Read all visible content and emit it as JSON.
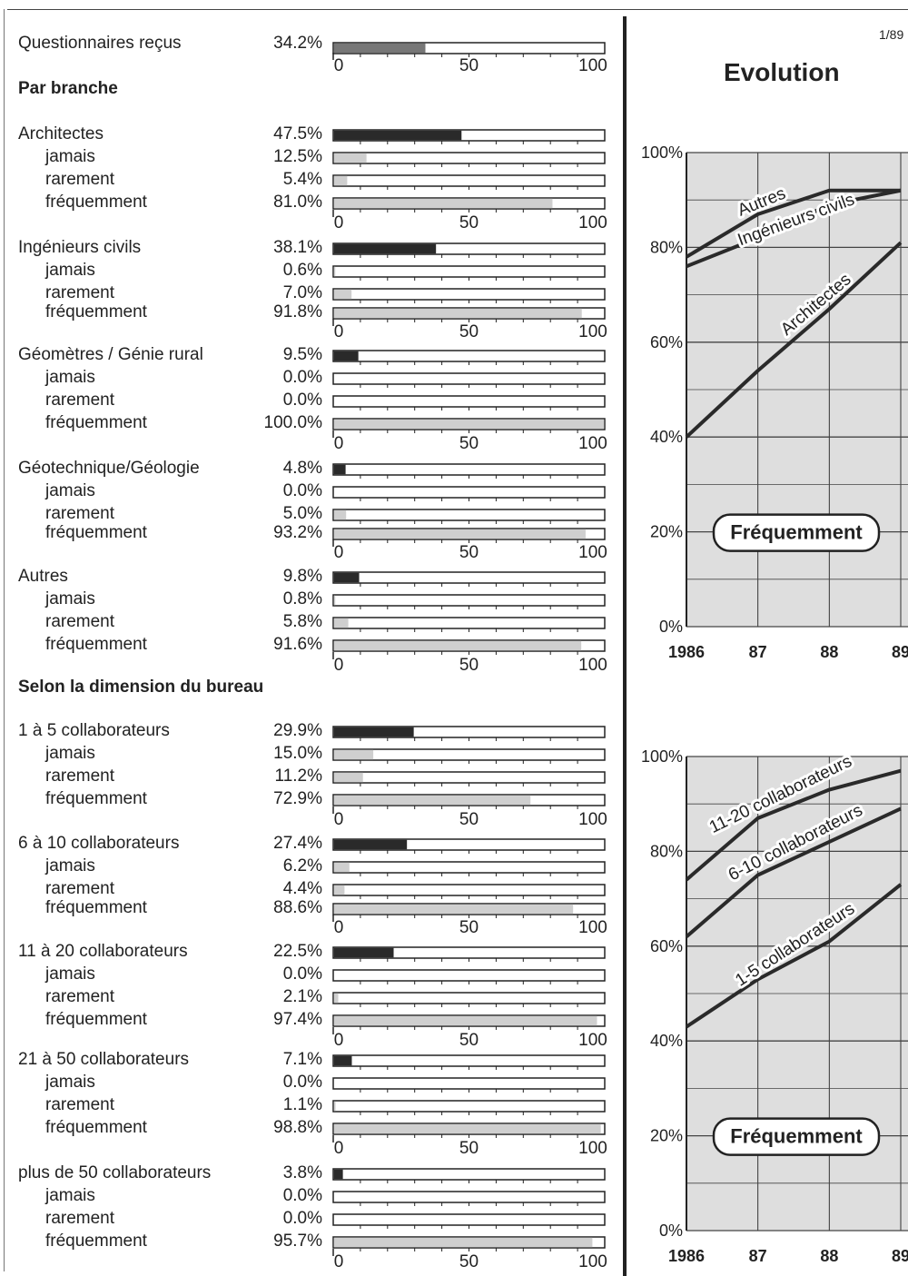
{
  "page_number": "1/89",
  "evolution_title": "Evolution",
  "questionnaires": {
    "label": "Questionnaires reçus",
    "value": 34.2,
    "display": "34.2%"
  },
  "sections": {
    "branche": "Par branche",
    "dimension": "Selon la dimension du bureau"
  },
  "scale_labels": [
    "0",
    "50",
    "100"
  ],
  "colors": {
    "total_bar": "#2a2a2a",
    "sub_bar": "#cfcfcf",
    "chart_bg": "#dedede",
    "line": "#2a2a2a"
  },
  "groups": [
    {
      "label": "Architectes",
      "total": 47.5,
      "total_display": "47.5%",
      "rows": [
        {
          "label": "jamais",
          "value": 12.5,
          "display": "12.5%"
        },
        {
          "label": "rarement",
          "value": 5.4,
          "display": "5.4%"
        },
        {
          "label": "fréquemment",
          "value": 81.0,
          "display": "81.0%"
        }
      ]
    },
    {
      "label": "Ingénieurs civils",
      "total": 38.1,
      "total_display": "38.1%",
      "rows": [
        {
          "label": "jamais",
          "value": 0.6,
          "display": "0.6%"
        },
        {
          "label": "rarement",
          "value": 7.0,
          "display": "7.0%"
        },
        {
          "label": "fréquemment",
          "value": 91.8,
          "display": "91.8%"
        }
      ]
    },
    {
      "label": "Géomètres / Génie rural",
      "total": 9.5,
      "total_display": "9.5%",
      "rows": [
        {
          "label": "jamais",
          "value": 0.0,
          "display": "0.0%"
        },
        {
          "label": "rarement",
          "value": 0.0,
          "display": "0.0%"
        },
        {
          "label": "fréquemment",
          "value": 100.0,
          "display": "100.0%"
        }
      ]
    },
    {
      "label": "Géotechnique/Géologie",
      "total": 4.8,
      "total_display": "4.8%",
      "rows": [
        {
          "label": "jamais",
          "value": 0.0,
          "display": "0.0%"
        },
        {
          "label": "rarement",
          "value": 5.0,
          "display": "5.0%"
        },
        {
          "label": "fréquemment",
          "value": 93.2,
          "display": "93.2%"
        }
      ]
    },
    {
      "label": "Autres",
      "total": 9.8,
      "total_display": "9.8%",
      "rows": [
        {
          "label": "jamais",
          "value": 0.8,
          "display": "0.8%"
        },
        {
          "label": "rarement",
          "value": 5.8,
          "display": "5.8%"
        },
        {
          "label": "fréquemment",
          "value": 91.6,
          "display": "91.6%"
        }
      ]
    },
    {
      "label": "1 à 5 collaborateurs",
      "total": 29.9,
      "total_display": "29.9%",
      "rows": [
        {
          "label": "jamais",
          "value": 15.0,
          "display": "15.0%"
        },
        {
          "label": "rarement",
          "value": 11.2,
          "display": "11.2%"
        },
        {
          "label": "fréquemment",
          "value": 72.9,
          "display": "72.9%"
        }
      ]
    },
    {
      "label": "6 à 10 collaborateurs",
      "total": 27.4,
      "total_display": "27.4%",
      "rows": [
        {
          "label": "jamais",
          "value": 6.2,
          "display": "6.2%"
        },
        {
          "label": "rarement",
          "value": 4.4,
          "display": "4.4%"
        },
        {
          "label": "fréquemment",
          "value": 88.6,
          "display": "88.6%"
        }
      ]
    },
    {
      "label": "11 à 20 collaborateurs",
      "total": 22.5,
      "total_display": "22.5%",
      "rows": [
        {
          "label": "jamais",
          "value": 0.0,
          "display": "0.0%"
        },
        {
          "label": "rarement",
          "value": 2.1,
          "display": "2.1%"
        },
        {
          "label": "fréquemment",
          "value": 97.4,
          "display": "97.4%"
        }
      ]
    },
    {
      "label": "21 à 50 collaborateurs",
      "total": 7.1,
      "total_display": "7.1%",
      "rows": [
        {
          "label": "jamais",
          "value": 0.0,
          "display": "0.0%"
        },
        {
          "label": "rarement",
          "value": 1.1,
          "display": "1.1%"
        },
        {
          "label": "fréquemment",
          "value": 98.8,
          "display": "98.8%"
        }
      ]
    },
    {
      "label": "plus de 50 collaborateurs",
      "total": 3.8,
      "total_display": "3.8%",
      "rows": [
        {
          "label": "jamais",
          "value": 0.0,
          "display": "0.0%"
        },
        {
          "label": "rarement",
          "value": 0.0,
          "display": "0.0%"
        },
        {
          "label": "fréquemment",
          "value": 95.7,
          "display": "95.7%"
        }
      ]
    }
  ],
  "chart_data": [
    {
      "type": "line",
      "title": "",
      "x": [
        "1986",
        "87",
        "88",
        "89"
      ],
      "y_ticks": [
        "0%",
        "20%",
        "40%",
        "60%",
        "80%",
        "100%"
      ],
      "ylim": [
        0,
        100
      ],
      "box_label": "Fréquemment",
      "series": [
        {
          "name": "Autres",
          "values": [
            78,
            87,
            92,
            92
          ]
        },
        {
          "name": "Ingénieurs civils",
          "values": [
            76,
            82,
            89,
            92
          ]
        },
        {
          "name": "Architectes",
          "values": [
            40,
            54,
            67,
            81
          ]
        }
      ]
    },
    {
      "type": "line",
      "title": "",
      "x": [
        "1986",
        "87",
        "88",
        "89"
      ],
      "y_ticks": [
        "0%",
        "20%",
        "40%",
        "60%",
        "80%",
        "100%"
      ],
      "ylim": [
        0,
        100
      ],
      "box_label": "Fréquemment",
      "series": [
        {
          "name": "11-20 collaborateurs",
          "values": [
            74,
            87,
            93,
            97
          ]
        },
        {
          "name": "6-10 collaborateurs",
          "values": [
            62,
            75,
            82,
            89
          ]
        },
        {
          "name": "1-5 collaborateurs",
          "values": [
            43,
            53,
            61,
            73
          ]
        }
      ]
    }
  ]
}
